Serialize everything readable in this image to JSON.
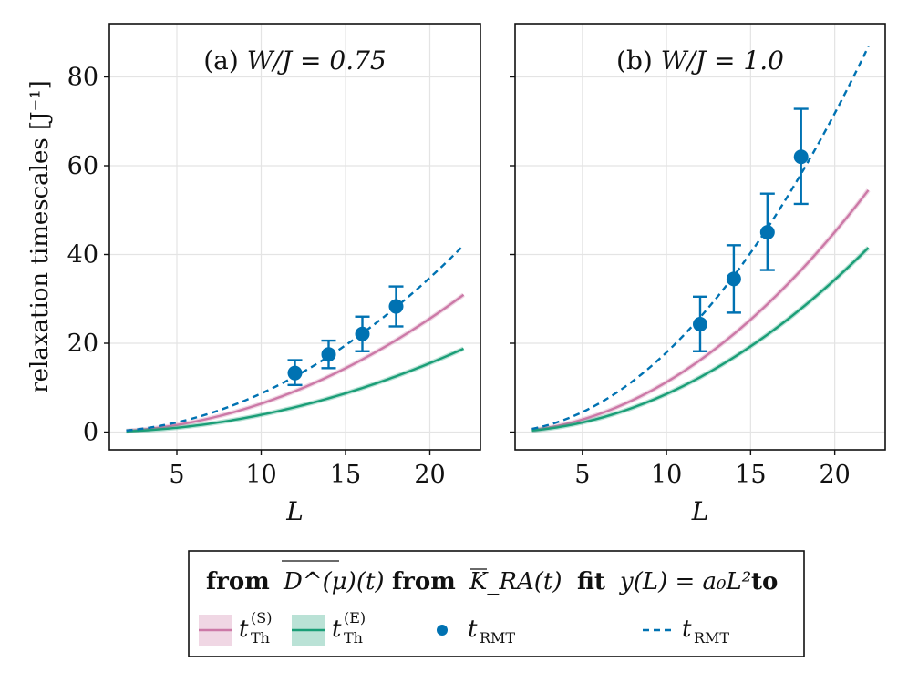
{
  "chart_data": {
    "type": "line",
    "ylabel": "relaxation timescales [J⁻¹]",
    "xlabel": "L",
    "xlim": [
      1,
      23
    ],
    "ylim": [
      -4,
      92
    ],
    "x_ticks": [
      5,
      10,
      15,
      20
    ],
    "y_ticks": [
      0,
      20,
      40,
      60,
      80
    ],
    "panels": [
      {
        "title_prefix": "(a)",
        "title_param": "W/J = 0.75",
        "series": [
          {
            "name": "t_Th^(S)",
            "color": "#cc79a7",
            "style": "solid",
            "a0": 0.0639,
            "x_range": [
              2,
              22
            ]
          },
          {
            "name": "t_Th^(E)",
            "color": "#1a9e77",
            "style": "solid",
            "a0": 0.0388,
            "x_range": [
              2,
              22
            ]
          },
          {
            "name": "fit t_RMT",
            "color": "#0072b2",
            "style": "dashed",
            "a0": 0.0869,
            "x_range": [
              2,
              22
            ]
          }
        ],
        "points": [
          {
            "x": 12,
            "y": 13.3,
            "err_low": 2.7,
            "err_high": 2.9
          },
          {
            "x": 14,
            "y": 17.5,
            "err_low": 3.1,
            "err_high": 3.1
          },
          {
            "x": 16,
            "y": 22.1,
            "err_low": 3.9,
            "err_high": 3.9
          },
          {
            "x": 18,
            "y": 28.3,
            "err_low": 4.5,
            "err_high": 4.5
          }
        ]
      },
      {
        "title_prefix": "(b)",
        "title_param": "W/J = 1.0",
        "series": [
          {
            "name": "t_Th^(S)",
            "color": "#cc79a7",
            "style": "solid",
            "a0": 0.1126,
            "x_range": [
              2,
              22
            ]
          },
          {
            "name": "t_Th^(E)",
            "color": "#1a9e77",
            "style": "solid",
            "a0": 0.0858,
            "x_range": [
              2,
              22
            ]
          },
          {
            "name": "fit t_RMT",
            "color": "#0072b2",
            "style": "dashed",
            "a0": 0.1795,
            "x_range": [
              2,
              22
            ]
          }
        ],
        "points": [
          {
            "x": 12,
            "y": 24.3,
            "err_low": 6.1,
            "err_high": 6.2
          },
          {
            "x": 14,
            "y": 34.5,
            "err_low": 7.6,
            "err_high": 7.6
          },
          {
            "x": 16,
            "y": 45.0,
            "err_low": 8.5,
            "err_high": 8.7
          },
          {
            "x": 18,
            "y": 62.0,
            "err_low": 10.6,
            "err_high": 10.8
          }
        ]
      }
    ],
    "legend": {
      "group1_header": "from",
      "group1_expr": "D^(μ)(t)",
      "group2_header": "from",
      "group2_expr": "K_RA(t)",
      "group3_header": "fit",
      "group3_expr": "y(L) = a₀L²",
      "group3_tail": "to",
      "entries": [
        {
          "label": "t",
          "sup": "(S)",
          "sub": "Th",
          "color": "#cc79a7"
        },
        {
          "label": "t",
          "sup": "(E)",
          "sub": "Th",
          "color": "#1a9e77"
        },
        {
          "label": "t",
          "sub": "RMT",
          "color": "#0072b2"
        },
        {
          "label": "t",
          "sub": "RMT",
          "color": "#0072b2"
        }
      ]
    }
  }
}
